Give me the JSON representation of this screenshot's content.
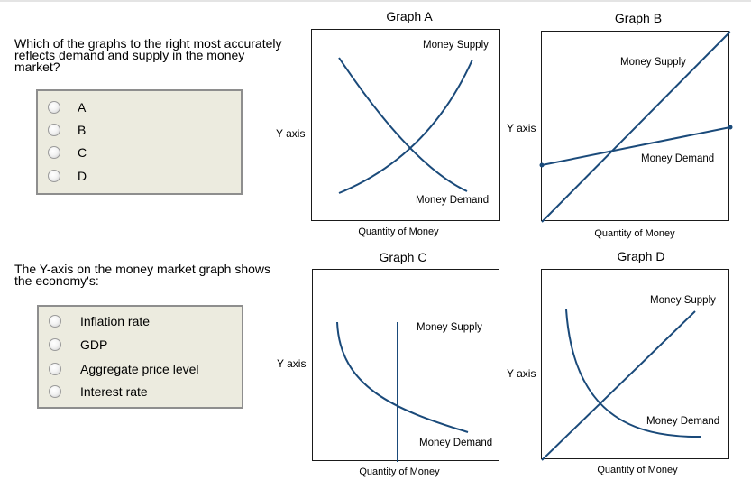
{
  "question1": {
    "text": "Which of the graphs to the right most accurately reflects demand and supply in the money market?",
    "options": [
      "A",
      "B",
      "C",
      "D"
    ]
  },
  "question2": {
    "text": "The Y-axis on the money market graph shows the economy's:",
    "options": [
      "Inflation rate",
      "GDP",
      "Aggregate price level",
      "Interest rate"
    ]
  },
  "graphs": {
    "a": {
      "title": "Graph A",
      "y_axis": "Y axis",
      "x_axis": "Quantity of Money",
      "supply_label": "Money Supply",
      "demand_label": "Money Demand"
    },
    "b": {
      "title": "Graph B",
      "y_axis": "Y axis",
      "x_axis": "Quantity of Money",
      "supply_label": "Money Supply",
      "demand_label": "Money Demand"
    },
    "c": {
      "title": "Graph C",
      "y_axis": "Y axis",
      "x_axis": "Quantity of Money",
      "supply_label": "Money Supply",
      "demand_label": "Money Demand"
    },
    "d": {
      "title": "Graph D",
      "y_axis": "Y axis",
      "x_axis": "Quantity of Money",
      "supply_label": "Money Supply",
      "demand_label": "Money Demand"
    }
  },
  "colors": {
    "curve": "#1a4a7a",
    "choice_box_bg": "#ecebdf",
    "choice_box_border": "#8e8e8e"
  }
}
